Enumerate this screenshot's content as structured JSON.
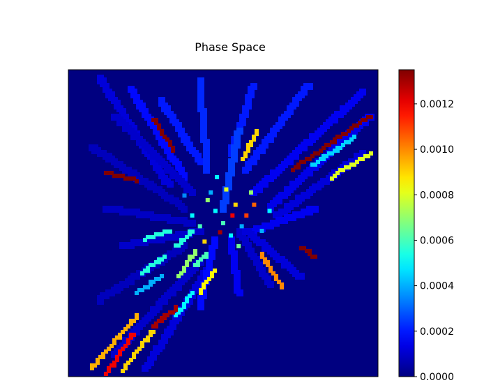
{
  "chart_data": {
    "type": "heatmap",
    "title": "Phase Space",
    "xlabel": "",
    "ylabel": "",
    "colormap": "jet",
    "colorbar": {
      "min": 0.0,
      "max": 0.00135,
      "tick_values": [
        0.0,
        0.0002,
        0.0004,
        0.0006,
        0.0008,
        0.001,
        0.0012
      ],
      "tick_labels": [
        "0.0000",
        "0.0002",
        "0.0004",
        "0.0006",
        "0.0008",
        "0.0010",
        "0.0012"
      ]
    },
    "background_value": 0.0,
    "grid": false,
    "streaks": [
      {
        "from": [
          -0.8,
          0.95
        ],
        "to": [
          -0.35,
          0.25
        ],
        "value": 0.00012
      },
      {
        "from": [
          -0.6,
          0.88
        ],
        "to": [
          -0.25,
          0.3
        ],
        "value": 0.00018
      },
      {
        "from": [
          -0.4,
          0.8
        ],
        "to": [
          -0.15,
          0.4
        ],
        "value": 0.0002
      },
      {
        "from": [
          -0.15,
          0.92
        ],
        "to": [
          -0.1,
          0.35
        ],
        "value": 0.00022
      },
      {
        "from": [
          0.2,
          0.9
        ],
        "to": [
          0.05,
          0.45
        ],
        "value": 0.0002
      },
      {
        "from": [
          0.55,
          0.9
        ],
        "to": [
          0.15,
          0.35
        ],
        "value": 0.0002
      },
      {
        "from": [
          0.9,
          0.85
        ],
        "to": [
          0.2,
          0.2
        ],
        "value": 0.00015
      },
      {
        "from": [
          0.95,
          0.7
        ],
        "to": [
          0.3,
          0.1
        ],
        "value": 0.00014
      },
      {
        "from": [
          0.9,
          0.45
        ],
        "to": [
          0.35,
          0.05
        ],
        "value": 0.00012
      },
      {
        "from": [
          0.6,
          0.1
        ],
        "to": [
          0.2,
          -0.05
        ],
        "value": 0.00015
      },
      {
        "from": [
          -0.7,
          0.7
        ],
        "to": [
          -0.2,
          0.2
        ],
        "value": 0.0001
      },
      {
        "from": [
          -0.85,
          0.5
        ],
        "to": [
          -0.25,
          0.1
        ],
        "value": 8e-05
      },
      {
        "from": [
          -0.75,
          0.1
        ],
        "to": [
          -0.2,
          0.0
        ],
        "value": 9e-05
      },
      {
        "from": [
          -0.65,
          -0.15
        ],
        "to": [
          -0.15,
          -0.05
        ],
        "value": 0.0001
      },
      {
        "from": [
          -0.8,
          -0.5
        ],
        "to": [
          -0.25,
          -0.15
        ],
        "value": 8e-05
      },
      {
        "from": [
          -0.7,
          -0.85
        ],
        "to": [
          -0.15,
          -0.25
        ],
        "value": 0.0001
      },
      {
        "from": [
          -0.5,
          -0.95
        ],
        "to": [
          -0.1,
          -0.3
        ],
        "value": 0.00012
      },
      {
        "from": [
          -0.15,
          -0.55
        ],
        "to": [
          -0.05,
          -0.1
        ],
        "value": 0.00018
      },
      {
        "from": [
          0.1,
          -0.45
        ],
        "to": [
          0.05,
          -0.1
        ],
        "value": 0.00015
      },
      {
        "from": [
          0.3,
          -0.4
        ],
        "to": [
          0.1,
          -0.05
        ],
        "value": 0.0001
      },
      {
        "from": [
          0.5,
          -0.35
        ],
        "to": [
          0.15,
          -0.05
        ],
        "value": 0.00012
      },
      {
        "from": [
          0.1,
          0.6
        ],
        "to": [
          0.0,
          0.1
        ],
        "value": 0.00025
      }
    ],
    "highlights": [
      {
        "from": [
          -0.45,
          0.68
        ],
        "to": [
          -0.32,
          0.48
        ],
        "value": 0.00135
      },
      {
        "from": [
          -0.75,
          0.33
        ],
        "to": [
          -0.55,
          0.28
        ],
        "value": 0.00135
      },
      {
        "from": [
          0.95,
          0.7
        ],
        "to": [
          0.45,
          0.35
        ],
        "value": 0.00135
      },
      {
        "from": [
          0.6,
          -0.22
        ],
        "to": [
          0.5,
          -0.16
        ],
        "value": 0.00135
      },
      {
        "from": [
          0.22,
          0.6
        ],
        "to": [
          0.13,
          0.42
        ],
        "value": 0.0009
      },
      {
        "from": [
          0.95,
          0.45
        ],
        "to": [
          0.7,
          0.3
        ],
        "value": 0.0008
      },
      {
        "from": [
          0.85,
          0.56
        ],
        "to": [
          0.58,
          0.38
        ],
        "value": 0.00045
      },
      {
        "from": [
          -0.18,
          -0.28
        ],
        "to": [
          -0.1,
          -0.2
        ],
        "value": 0.0006
      },
      {
        "from": [
          -0.5,
          -0.1
        ],
        "to": [
          -0.35,
          -0.05
        ],
        "value": 0.00055
      },
      {
        "from": [
          -0.28,
          -0.35
        ],
        "to": [
          -0.18,
          -0.18
        ],
        "value": 0.0007
      },
      {
        "from": [
          -0.15,
          -0.45
        ],
        "to": [
          -0.05,
          -0.3
        ],
        "value": 0.00085
      },
      {
        "from": [
          -0.3,
          -0.6
        ],
        "to": [
          -0.2,
          -0.45
        ],
        "value": 0.0005
      },
      {
        "from": [
          0.25,
          -0.2
        ],
        "to": [
          0.38,
          -0.42
        ],
        "value": 0.001
      },
      {
        "from": [
          -0.52,
          -0.32
        ],
        "to": [
          -0.38,
          -0.22
        ],
        "value": 0.00055
      },
      {
        "from": [
          -0.3,
          -0.15
        ],
        "to": [
          -0.2,
          -0.05
        ],
        "value": 0.00055
      },
      {
        "from": [
          -0.55,
          -0.45
        ],
        "to": [
          -0.4,
          -0.35
        ],
        "value": 0.0004
      },
      {
        "from": [
          -0.85,
          -0.95
        ],
        "to": [
          -0.55,
          -0.6
        ],
        "value": 0.00095
      },
      {
        "from": [
          -0.75,
          -0.98
        ],
        "to": [
          -0.58,
          -0.72
        ],
        "value": 0.0012
      },
      {
        "from": [
          -0.65,
          -0.96
        ],
        "to": [
          -0.45,
          -0.7
        ],
        "value": 0.0009
      },
      {
        "from": [
          -0.45,
          -0.68
        ],
        "to": [
          -0.35,
          -0.58
        ],
        "value": 0.0013
      },
      {
        "from": [
          -0.38,
          -0.62
        ],
        "to": [
          -0.3,
          -0.55
        ],
        "value": 0.0013
      }
    ],
    "speckles": [
      {
        "at": [
          0.0,
          0.0
        ],
        "value": 0.0006
      },
      {
        "at": [
          0.08,
          0.12
        ],
        "value": 0.0009
      },
      {
        "at": [
          -0.05,
          0.08
        ],
        "value": 0.0005
      },
      {
        "at": [
          0.12,
          -0.02
        ],
        "value": 0.0004
      },
      {
        "at": [
          -0.1,
          0.15
        ],
        "value": 0.0007
      },
      {
        "at": [
          0.2,
          0.12
        ],
        "value": 0.00105
      },
      {
        "at": [
          -0.02,
          -0.06
        ],
        "value": 0.0013
      },
      {
        "at": [
          0.05,
          -0.08
        ],
        "value": 0.0005
      },
      {
        "at": [
          -0.15,
          -0.02
        ],
        "value": 0.0006
      },
      {
        "at": [
          0.15,
          0.05
        ],
        "value": 0.0011
      },
      {
        "at": [
          -0.08,
          0.2
        ],
        "value": 0.0004
      },
      {
        "at": [
          0.02,
          0.22
        ],
        "value": 0.0008
      },
      {
        "at": [
          -0.2,
          0.05
        ],
        "value": 0.0005
      },
      {
        "at": [
          0.1,
          -0.15
        ],
        "value": 0.00065
      },
      {
        "at": [
          -0.12,
          -0.12
        ],
        "value": 0.0009
      },
      {
        "at": [
          0.25,
          -0.05
        ],
        "value": 0.0004
      },
      {
        "at": [
          0.18,
          0.2
        ],
        "value": 0.0007
      },
      {
        "at": [
          -0.04,
          0.3
        ],
        "value": 0.0005
      },
      {
        "at": [
          0.06,
          0.05
        ],
        "value": 0.0012
      },
      {
        "at": [
          -0.25,
          0.18
        ],
        "value": 0.00035
      },
      {
        "at": [
          0.3,
          0.08
        ],
        "value": 0.0005
      }
    ]
  }
}
